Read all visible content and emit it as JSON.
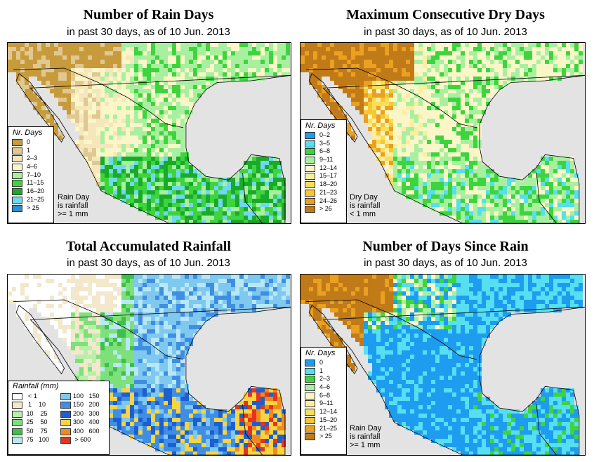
{
  "panels": [
    {
      "id": "rain-days",
      "title": "Number of Rain Days",
      "subtitle": "in past 30 days, as of  10 Jun. 2013",
      "legend_title": "Nr. Days",
      "legend": [
        {
          "label": "0",
          "color": "#c79a3c"
        },
        {
          "label": "1",
          "color": "#e0c890"
        },
        {
          "label": "2–3",
          "color": "#f5e6bb"
        },
        {
          "label": "4–6",
          "color": "#fbf6c8"
        },
        {
          "label": "7–10",
          "color": "#a8f0a0"
        },
        {
          "label": "11–15",
          "color": "#3ed43e"
        },
        {
          "label": "16–20",
          "color": "#1aaa2a"
        },
        {
          "label": "21–25",
          "color": "#6fd8f0"
        },
        {
          "label": "> 25",
          "color": "#2b8fd8"
        }
      ],
      "note": [
        "Rain Day",
        "is rainfall",
        ">= 1 mm"
      ]
    },
    {
      "id": "dry-days",
      "title": "Maximum Consecutive Dry Days",
      "subtitle": "in past 30 days, as of  10 Jun. 2013",
      "legend_title": "Nr. Days",
      "legend": [
        {
          "label": "0–2",
          "color": "#1e9cf0"
        },
        {
          "label": "3–5",
          "color": "#55dff0"
        },
        {
          "label": "6–8",
          "color": "#3ed43e"
        },
        {
          "label": "9–11",
          "color": "#a8f0a0"
        },
        {
          "label": "12–14",
          "color": "#fbf6c8"
        },
        {
          "label": "15–17",
          "color": "#fbeea0"
        },
        {
          "label": "18–20",
          "color": "#f8de5a"
        },
        {
          "label": "21–23",
          "color": "#f5c832"
        },
        {
          "label": "24–26",
          "color": "#eaa020"
        },
        {
          "label": "> 26",
          "color": "#c07a18"
        }
      ],
      "note": [
        "Dry Day",
        "is rainfall",
        "< 1 mm"
      ]
    },
    {
      "id": "total-rainfall",
      "title": "Total Accumulated Rainfall",
      "subtitle": "in past 30 days, as of  10 Jun. 2013",
      "legend_title": "Rainfall (mm)",
      "legend_col1": [
        {
          "label": "  < 1",
          "color": "#ffffff"
        },
        {
          "label": "  1    10",
          "color": "#f3e8cc"
        },
        {
          "label": " 10    25",
          "color": "#b8f0a8"
        },
        {
          "label": " 25    50",
          "color": "#7ee07a"
        },
        {
          "label": " 50    75",
          "color": "#3ec04a"
        },
        {
          "label": " 75   100",
          "color": "#b8e8f4"
        }
      ],
      "legend_col2": [
        {
          "label": "100   150",
          "color": "#7fc8ef"
        },
        {
          "label": "150   200",
          "color": "#3f8ee4"
        },
        {
          "label": "200   300",
          "color": "#1c5fd0"
        },
        {
          "label": "300   400",
          "color": "#f8d440"
        },
        {
          "label": "400   600",
          "color": "#f08a1e"
        },
        {
          "label": " > 600",
          "color": "#e8321e"
        }
      ]
    },
    {
      "id": "days-since-rain",
      "title": "Number of Days Since Rain",
      "subtitle": "in past 30 days, as of  10 Jun. 2013",
      "legend_title": "Nr. Days",
      "legend": [
        {
          "label": "0",
          "color": "#1e9cf0"
        },
        {
          "label": "1",
          "color": "#55dff0"
        },
        {
          "label": "2–3",
          "color": "#3ed43e"
        },
        {
          "label": "4–6",
          "color": "#a8f0a0"
        },
        {
          "label": "6–8",
          "color": "#fbf6c8"
        },
        {
          "label": "9–11",
          "color": "#fbeea0"
        },
        {
          "label": "12–14",
          "color": "#f8de5a"
        },
        {
          "label": "15–20",
          "color": "#f5c832"
        },
        {
          "label": "21–25",
          "color": "#eaa020"
        },
        {
          "label": "> 25",
          "color": "#c07a18"
        }
      ],
      "note": [
        "Rain Day",
        "is rainfall",
        ">= 1 mm"
      ]
    }
  ]
}
